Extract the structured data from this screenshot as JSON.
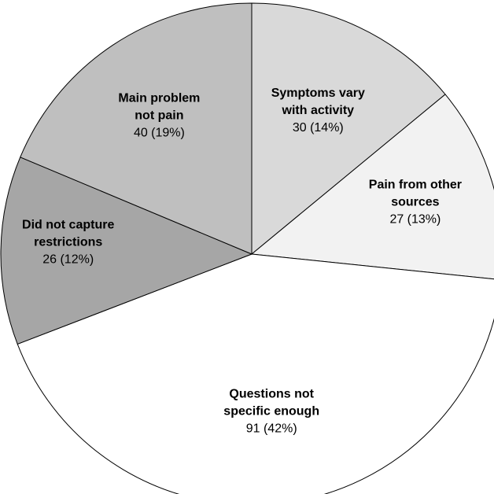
{
  "chart_data": {
    "type": "pie",
    "start_angle_deg": 0,
    "direction": "clockwise",
    "slices": [
      {
        "label_lines": [
          "Symptoms vary",
          "with activity"
        ],
        "value": 30,
        "value_label": "30 (14%)",
        "color": "#d9d9d9"
      },
      {
        "label_lines": [
          "Pain from other",
          "sources"
        ],
        "value": 27,
        "value_label": "27 (13%)",
        "color": "#f2f2f2"
      },
      {
        "label_lines": [
          "Questions not",
          "specific enough"
        ],
        "value": 91,
        "value_label": "91 (42%)",
        "color": "#ffffff"
      },
      {
        "label_lines": [
          "Did not capture",
          "restrictions"
        ],
        "value": 26,
        "value_label": "26 (12%)",
        "color": "#a6a6a6"
      },
      {
        "label_lines": [
          "Main problem",
          "not pain"
        ],
        "value": 40,
        "value_label": "40 (19%)",
        "color": "#bfbfbf"
      }
    ]
  }
}
